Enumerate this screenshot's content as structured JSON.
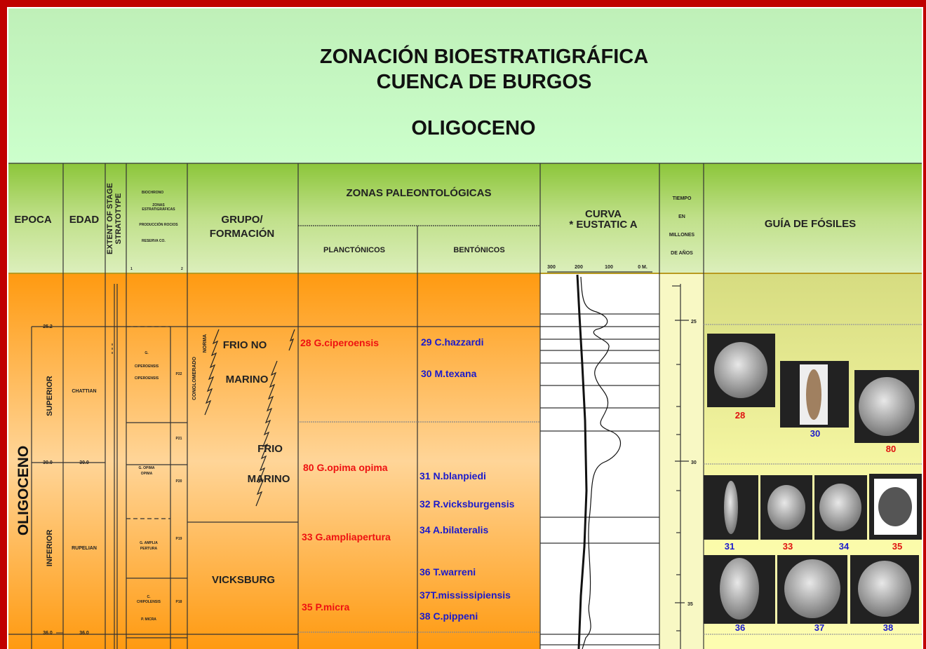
{
  "header": {
    "title_lines": [
      "ZONACIÓN BIOESTRATIGRÁFICA",
      "CUENCA DE BURGOS"
    ],
    "subtitle": "OLIGOCENO"
  },
  "columns": {
    "epoca": "EPOCA",
    "edad": "EDAD",
    "stratotype": [
      "EXTENT OF STAGE",
      "STRATOTYPE"
    ],
    "biochrono": [
      "BIOCHRONO",
      "ZONAS",
      "ESTRATIGRÁFICAS",
      "PRODUCCIÓN ROCIOS",
      "RESERVA CO.",
      "1",
      "2"
    ],
    "grupo": [
      "GRUPO/",
      "FORMACIÓN"
    ],
    "zonas": "ZONAS PALEONTOLÓGICAS",
    "planctonicos": "PLANCTÓNICOS",
    "bentonicos": "BENTÓNICOS",
    "curva": [
      "CURVA",
      "* EUSTATIC A"
    ],
    "curva_scale": [
      "300",
      "200",
      "100",
      "0 M."
    ],
    "tiempo": [
      "TIEMPO",
      "EN",
      "MILLONES",
      "DE AÑOS"
    ],
    "fosiles": "GUÍA DE FÓSILES"
  },
  "body": {
    "epoch_ages": [
      "25.2",
      "30.0",
      "36.0"
    ],
    "edad_ages": [
      "30.0",
      "36.0"
    ],
    "epoca": "OLIGOCENO",
    "sub_epochs": [
      "SUPERIOR",
      "INFERIOR"
    ],
    "edades": [
      "CHATTIAN",
      "RUPELIAN"
    ],
    "biozones": [
      [
        "G.",
        "CIPEROENSIS",
        "CIPEROENSIS"
      ],
      [
        "G. OPIMA",
        "OPIMA"
      ],
      [
        "G. AMPLIA",
        "PERTURA"
      ],
      [
        "C.",
        "CHIPOLENSIS",
        "P. MICRA"
      ]
    ],
    "p_zones": [
      "P22",
      "P21",
      "P20",
      "P19",
      "P18"
    ],
    "grupo": {
      "rotated": [
        "CONGLOMERADO",
        "NORMA"
      ],
      "labels": [
        "FRIO NO",
        "MARINO",
        "FRIO",
        "MARINO",
        "VICKSBURG"
      ]
    },
    "planctonicos": [
      "28 G.ciperoensis",
      "80 G.opima opima",
      "33 G.ampliapertura",
      "35 P.micra"
    ],
    "bentonicos": [
      "29 C.hazzardi",
      "30 M.texana",
      "31 N.blanpiedi",
      "32 R.vicksburgensis",
      "34 A.bilateralis",
      "36 T.warreni",
      "37T.mississipiensis",
      "38 C.pippeni"
    ],
    "tiempo_ticks": [
      "25",
      "30",
      "35"
    ],
    "fossil_labels": [
      "28",
      "30",
      "80",
      "31",
      "33",
      "34",
      "35",
      "36",
      "37",
      "38"
    ]
  }
}
